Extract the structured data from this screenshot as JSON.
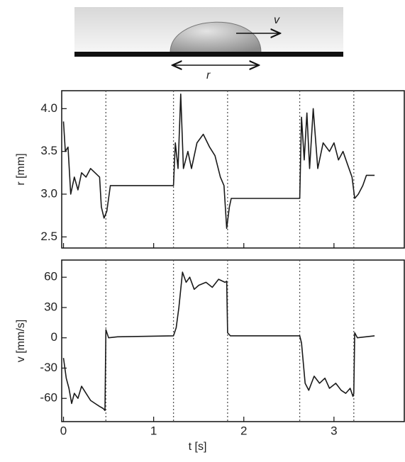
{
  "schematic": {
    "velocity_label": "v",
    "radius_label": "r"
  },
  "chart_data": [
    {
      "type": "line",
      "ylabel": "r [mm]",
      "x": [
        0,
        0.02,
        0.05,
        0.08,
        0.12,
        0.16,
        0.2,
        0.25,
        0.3,
        0.35,
        0.4,
        0.42,
        0.45,
        0.48,
        0.52,
        1.22,
        1.24,
        1.27,
        1.3,
        1.33,
        1.38,
        1.42,
        1.48,
        1.55,
        1.62,
        1.68,
        1.74,
        1.78,
        1.81,
        1.84,
        1.86,
        2.62,
        2.64,
        2.67,
        2.7,
        2.73,
        2.77,
        2.82,
        2.88,
        2.95,
        3.0,
        3.05,
        3.1,
        3.15,
        3.2,
        3.23,
        3.27,
        3.32,
        3.36,
        3.45
      ],
      "series": [
        {
          "color": "#1a1a1a",
          "values": [
            3.85,
            3.5,
            3.55,
            3.0,
            3.2,
            3.05,
            3.25,
            3.2,
            3.3,
            3.25,
            3.2,
            2.85,
            2.72,
            2.8,
            3.1,
            3.1,
            3.6,
            3.3,
            4.17,
            3.3,
            3.5,
            3.3,
            3.6,
            3.7,
            3.55,
            3.45,
            3.2,
            3.1,
            2.6,
            2.85,
            2.95,
            2.95,
            3.9,
            3.4,
            3.95,
            3.3,
            4.0,
            3.3,
            3.6,
            3.5,
            3.6,
            3.4,
            3.5,
            3.35,
            3.2,
            2.95,
            3.0,
            3.1,
            3.22,
            3.22
          ]
        }
      ],
      "xlim": [
        -0.02,
        3.78
      ],
      "ylim": [
        2.37,
        4.21
      ],
      "yticks": [
        {
          "value": 2.5,
          "label": "2.5"
        },
        {
          "value": 3,
          "label": "3.0"
        },
        {
          "value": 3.5,
          "label": "3.5"
        },
        {
          "value": 4,
          "label": "4.0"
        }
      ],
      "vlines": [
        0.47,
        1.22,
        1.82,
        2.62,
        3.22
      ]
    },
    {
      "type": "line",
      "ylabel": "v [mm/s]",
      "xlabel": "t [s]",
      "x": [
        0,
        0.03,
        0.06,
        0.09,
        0.12,
        0.16,
        0.2,
        0.25,
        0.3,
        0.35,
        0.4,
        0.44,
        0.46,
        0.47,
        0.5,
        0.6,
        1.22,
        1.25,
        1.28,
        1.32,
        1.36,
        1.4,
        1.45,
        1.5,
        1.58,
        1.65,
        1.72,
        1.79,
        1.81,
        1.82,
        1.85,
        2.62,
        2.64,
        2.68,
        2.72,
        2.78,
        2.84,
        2.9,
        2.95,
        3.02,
        3.08,
        3.13,
        3.18,
        3.21,
        3.22,
        3.23,
        3.26,
        3.45
      ],
      "series": [
        {
          "color": "#1a1a1a",
          "values": [
            -20,
            -40,
            -50,
            -65,
            -55,
            -60,
            -48,
            -55,
            -62,
            -65,
            -68,
            -70,
            -72,
            8,
            0,
            1,
            2,
            10,
            30,
            65,
            55,
            60,
            48,
            52,
            55,
            50,
            58,
            55,
            56,
            5,
            2,
            2,
            -5,
            -45,
            -52,
            -38,
            -45,
            -40,
            -50,
            -45,
            -52,
            -55,
            -50,
            -58,
            -55,
            5,
            0,
            2
          ]
        }
      ],
      "xlim": [
        -0.02,
        3.78
      ],
      "ylim": [
        -83,
        77
      ],
      "xticks": [
        0,
        1,
        2,
        3
      ],
      "yticks": [
        -60,
        -30,
        0,
        30,
        60
      ],
      "vlines": [
        0.47,
        1.22,
        1.82,
        2.62,
        3.22
      ]
    }
  ]
}
